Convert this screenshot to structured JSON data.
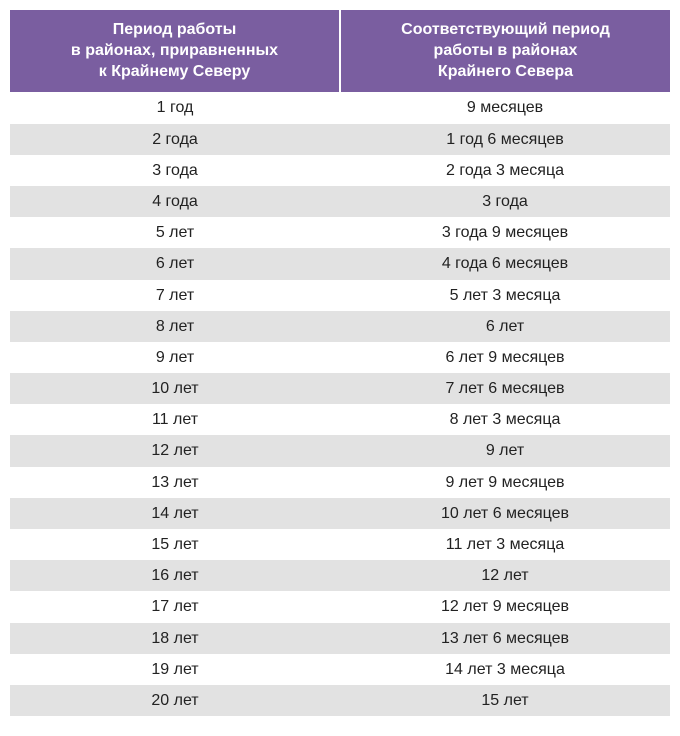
{
  "table": {
    "header_bg": "#7a5ea0",
    "header_color": "#ffffff",
    "row_odd_bg": "#ffffff",
    "row_even_bg": "#e2e2e2",
    "text_color": "#222222",
    "columns": [
      "Период работы\nв районах, приравненных\nк Крайнему Северу",
      "Соответствующий период\nработы в районах\nКрайнего Севера"
    ],
    "rows": [
      [
        "1 год",
        "9 месяцев"
      ],
      [
        "2 года",
        "1 год 6 месяцев"
      ],
      [
        "3 года",
        "2 года 3 месяца"
      ],
      [
        "4 года",
        "3 года"
      ],
      [
        "5 лет",
        "3 года 9 месяцев"
      ],
      [
        "6 лет",
        "4 года 6 месяцев"
      ],
      [
        "7 лет",
        "5 лет 3 месяца"
      ],
      [
        "8 лет",
        "6 лет"
      ],
      [
        "9 лет",
        "6 лет 9 месяцев"
      ],
      [
        "10 лет",
        "7 лет 6 месяцев"
      ],
      [
        "11 лет",
        "8 лет 3 месяца"
      ],
      [
        "12 лет",
        "9 лет"
      ],
      [
        "13 лет",
        "9 лет 9 месяцев"
      ],
      [
        "14 лет",
        "10 лет 6 месяцев"
      ],
      [
        "15 лет",
        "11 лет 3 месяца"
      ],
      [
        "16 лет",
        "12 лет"
      ],
      [
        "17 лет",
        "12 лет 9 месяцев"
      ],
      [
        "18 лет",
        "13 лет 6 месяцев"
      ],
      [
        "19 лет",
        "14 лет 3 месяца"
      ],
      [
        "20 лет",
        "15 лет"
      ]
    ]
  }
}
